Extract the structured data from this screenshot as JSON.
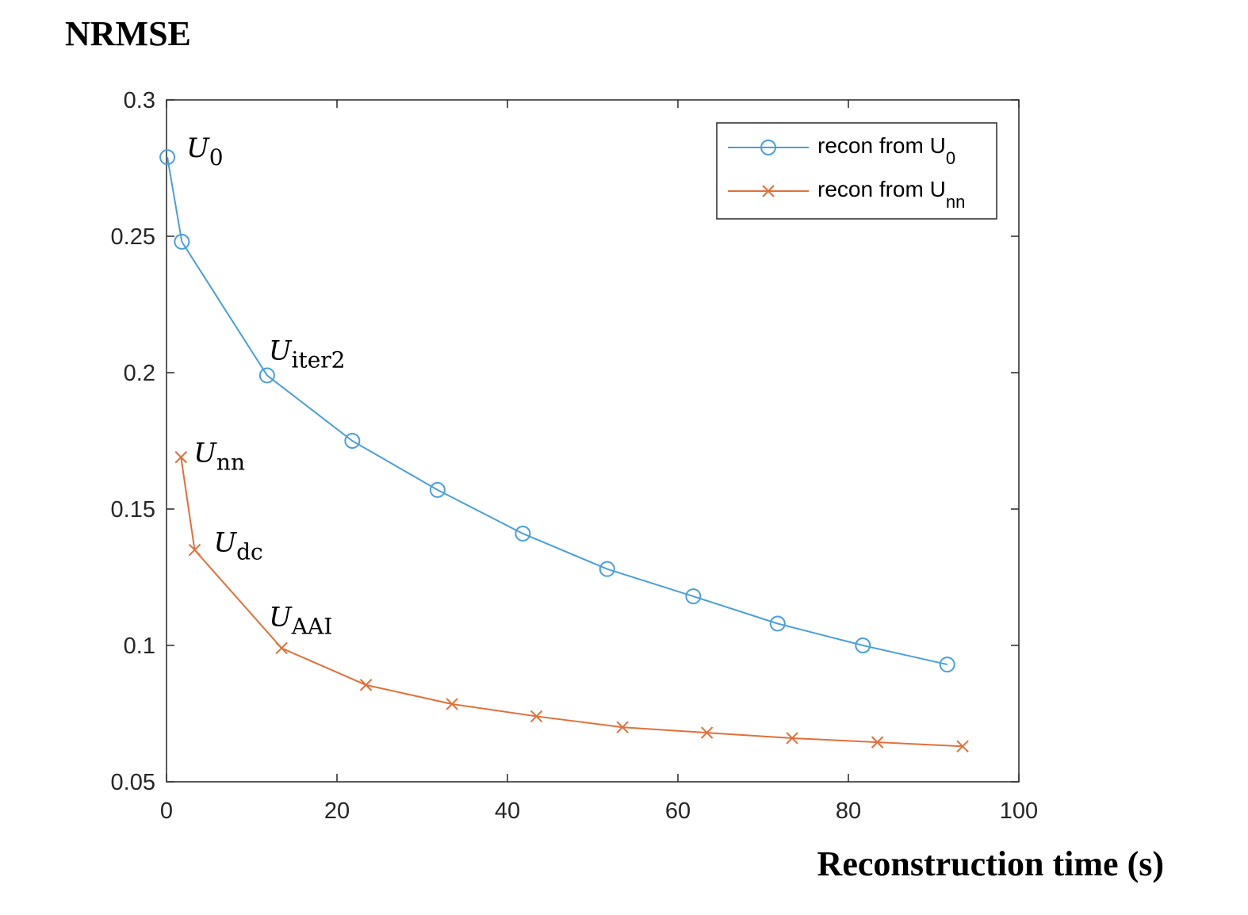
{
  "chart_data": {
    "type": "line",
    "title": "NRMSE",
    "xlabel": "Reconstruction time (s)",
    "ylabel": "",
    "xlim": [
      0,
      100
    ],
    "ylim": [
      0.05,
      0.3
    ],
    "xticks": [
      "0",
      "20",
      "40",
      "60",
      "80",
      "100"
    ],
    "yticks": [
      "0.05",
      "0.1",
      "0.15",
      "0.2",
      "0.25",
      "0.3"
    ],
    "grid": false,
    "legend_position": "top-right",
    "series": [
      {
        "name": "recon from U",
        "name_sub": "0",
        "color": "#4a9fd9",
        "marker": "circle",
        "x": [
          0.1,
          1.8,
          11.8,
          21.8,
          31.8,
          41.8,
          51.7,
          61.8,
          71.7,
          81.7,
          91.6
        ],
        "y": [
          0.279,
          0.248,
          0.199,
          0.175,
          0.157,
          0.141,
          0.128,
          0.118,
          0.108,
          0.1,
          0.093
        ]
      },
      {
        "name": "recon from U",
        "name_sub": "nn",
        "color": "#e0703a",
        "marker": "x",
        "x": [
          1.7,
          3.3,
          13.5,
          23.4,
          33.5,
          43.4,
          53.5,
          63.4,
          73.4,
          83.4,
          93.4
        ],
        "y": [
          0.169,
          0.135,
          0.099,
          0.0855,
          0.0785,
          0.074,
          0.07,
          0.068,
          0.066,
          0.0645,
          0.063
        ]
      }
    ],
    "annotations": [
      {
        "base": "U",
        "sub": "0",
        "x": 0.1,
        "y": 0.279
      },
      {
        "base": "U",
        "sub": "iter2",
        "x": 11.8,
        "y": 0.199
      },
      {
        "base": "U",
        "sub": "nn",
        "x": 1.7,
        "y": 0.169
      },
      {
        "base": "U",
        "sub": "dc",
        "x": 3.3,
        "y": 0.135
      },
      {
        "base": "U",
        "sub": "AAI",
        "x": 13.5,
        "y": 0.099
      }
    ]
  }
}
